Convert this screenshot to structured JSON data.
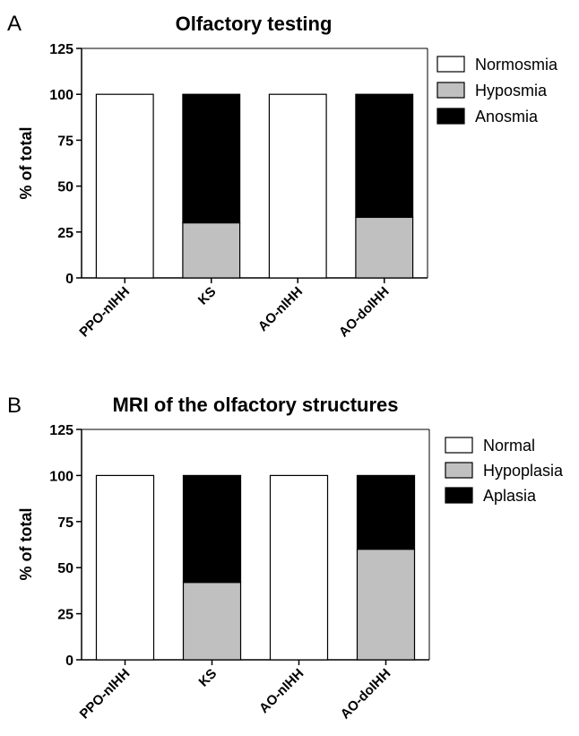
{
  "chart_data": [
    {
      "panel": "A",
      "type": "bar",
      "stacked": true,
      "title": "Olfactory testing",
      "xlabel": "",
      "ylabel": "% of total",
      "ylim": [
        0,
        125
      ],
      "yticks": [
        0,
        25,
        50,
        75,
        100,
        125
      ],
      "grid": false,
      "legend_position": "right",
      "categories": [
        "PPO-nIHH",
        "KS",
        "AO-nIHH",
        "AO-doIHH"
      ],
      "series": [
        {
          "name": "Normosmia",
          "color": "#ffffff",
          "values": [
            100,
            0,
            100,
            0
          ]
        },
        {
          "name": "Hyposmia",
          "color": "#c0c0c0",
          "values": [
            0,
            30,
            0,
            33
          ]
        },
        {
          "name": "Anosmia",
          "color": "#000000",
          "values": [
            0,
            70,
            0,
            67
          ]
        }
      ]
    },
    {
      "panel": "B",
      "type": "bar",
      "stacked": true,
      "title": "MRI of the olfactory structures",
      "xlabel": "",
      "ylabel": "% of total",
      "ylim": [
        0,
        125
      ],
      "yticks": [
        0,
        25,
        50,
        75,
        100,
        125
      ],
      "grid": false,
      "legend_position": "right",
      "categories": [
        "PPO-nIHH",
        "KS",
        "AO-nIHH",
        "AO-doIHH"
      ],
      "series": [
        {
          "name": "Normal",
          "color": "#ffffff",
          "values": [
            100,
            0,
            100,
            0
          ]
        },
        {
          "name": "Hypoplasia",
          "color": "#c0c0c0",
          "values": [
            0,
            42,
            0,
            60
          ]
        },
        {
          "name": "Aplasia",
          "color": "#000000",
          "values": [
            0,
            58,
            0,
            40
          ]
        }
      ]
    }
  ]
}
